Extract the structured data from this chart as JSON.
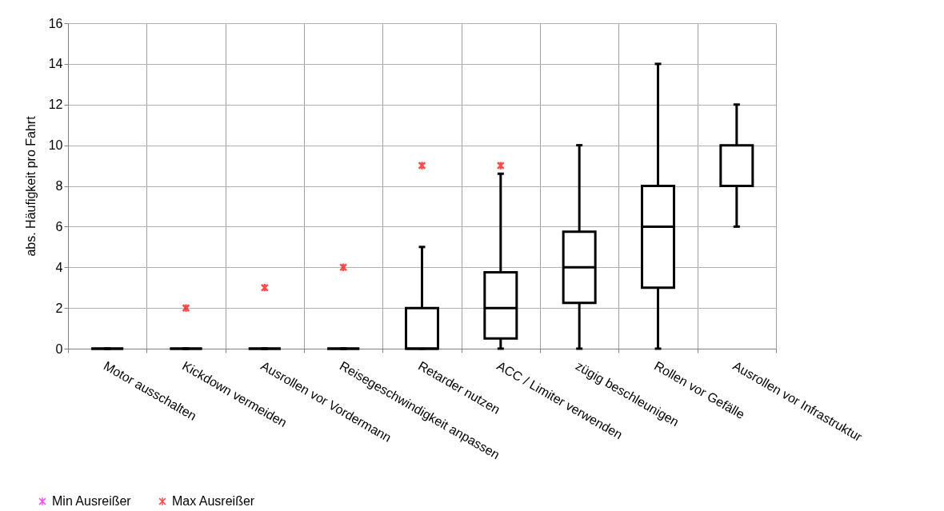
{
  "chart_data": {
    "type": "box",
    "color": "#000000",
    "ylabel": "abs. Häufigkeit pro Fahrt",
    "categories": [
      "Motor ausschalten",
      "Kickdown vermeiden",
      "Ausrollen vor Vordermann",
      "Reisegeschwindigkeit anpassen",
      "Retarder nutzen",
      "ACC / Limiter verwenden",
      "zügig beschleunigen",
      "Rollen vor Gefälle",
      "Ausrollen vor Infrastruktur"
    ],
    "boxes": [
      {
        "low": 0,
        "q1": 0,
        "median": 0,
        "q3": 0,
        "high": 0
      },
      {
        "low": 0,
        "q1": 0,
        "median": 0,
        "q3": 0,
        "high": 0
      },
      {
        "low": 0,
        "q1": 0,
        "median": 0,
        "q3": 0,
        "high": 0
      },
      {
        "low": 0,
        "q1": 0,
        "median": 0,
        "q3": 0,
        "high": 0
      },
      {
        "low": 0,
        "q1": 0,
        "median": 0,
        "q3": 2,
        "high": 5
      },
      {
        "low": 0,
        "q1": 0.5,
        "median": 2,
        "q3": 3.75,
        "high": 8.6
      },
      {
        "low": 0,
        "q1": 2.25,
        "median": 4,
        "q3": 5.75,
        "high": 10
      },
      {
        "low": 0,
        "q1": 3,
        "median": 6,
        "q3": 8,
        "high": 14
      },
      {
        "low": 6,
        "q1": 8,
        "median": 8,
        "q3": 10,
        "high": 12
      }
    ],
    "series": [
      {
        "name": "Min Ausreißer",
        "type": "scatter",
        "color": "#ff00ff",
        "values": [
          null,
          null,
          null,
          null,
          null,
          null,
          null,
          null,
          null
        ]
      },
      {
        "name": "Max Ausreißer",
        "type": "scatter",
        "color": "#ff0000",
        "values": [
          null,
          2,
          3,
          4,
          9,
          9,
          null,
          null,
          null
        ]
      }
    ],
    "ylim": [
      0,
      16
    ],
    "yticks": [
      0,
      2,
      4,
      6,
      8,
      10,
      12,
      14,
      16
    ],
    "grid": true,
    "legend": "bottom left",
    "marker": "cross"
  }
}
